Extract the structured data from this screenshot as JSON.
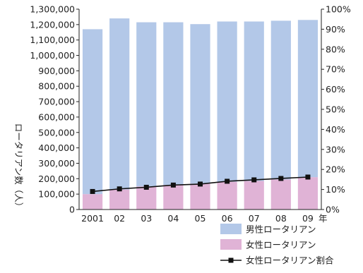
{
  "chart_data": {
    "type": "bar",
    "stacked": true,
    "categories": [
      "2001",
      "02",
      "03",
      "04",
      "05",
      "06",
      "07",
      "08",
      "09"
    ],
    "x_unit": "年",
    "ylabel": "ロータリアン数（人）",
    "ylim": [
      0,
      1300000
    ],
    "y_ticks": [
      "0",
      "100,000",
      "200,000",
      "300,000",
      "400,000",
      "500,000",
      "600,000",
      "700,000",
      "800,000",
      "900,000",
      "1,000,000",
      "1,100,000",
      "1,200,000",
      "1,300,000"
    ],
    "y2lim": [
      0,
      100
    ],
    "y2_ticks": [
      "0%",
      "10%",
      "20%",
      "30%",
      "40%",
      "50%",
      "60%",
      "70%",
      "80%",
      "90%",
      "100%"
    ],
    "series": [
      {
        "name": "男性ロータリアン",
        "kind": "bar",
        "color": "#b3c8e8",
        "values": [
          1070000,
          1110000,
          1065000,
          1055000,
          1035000,
          1040000,
          1035000,
          1030000,
          1020000
        ]
      },
      {
        "name": "女性ロータリアン",
        "kind": "bar",
        "color": "#e0b3d6",
        "values": [
          100000,
          130000,
          150000,
          160000,
          168000,
          180000,
          185000,
          195000,
          210000
        ]
      },
      {
        "name": "女性ロータリアン割合",
        "kind": "line",
        "axis": "right",
        "color": "#111111",
        "values": [
          9,
          10.3,
          11.1,
          12.2,
          12.7,
          14.1,
          14.8,
          15.5,
          16.2
        ]
      }
    ],
    "legend_position": "bottom-right",
    "grid": false
  }
}
